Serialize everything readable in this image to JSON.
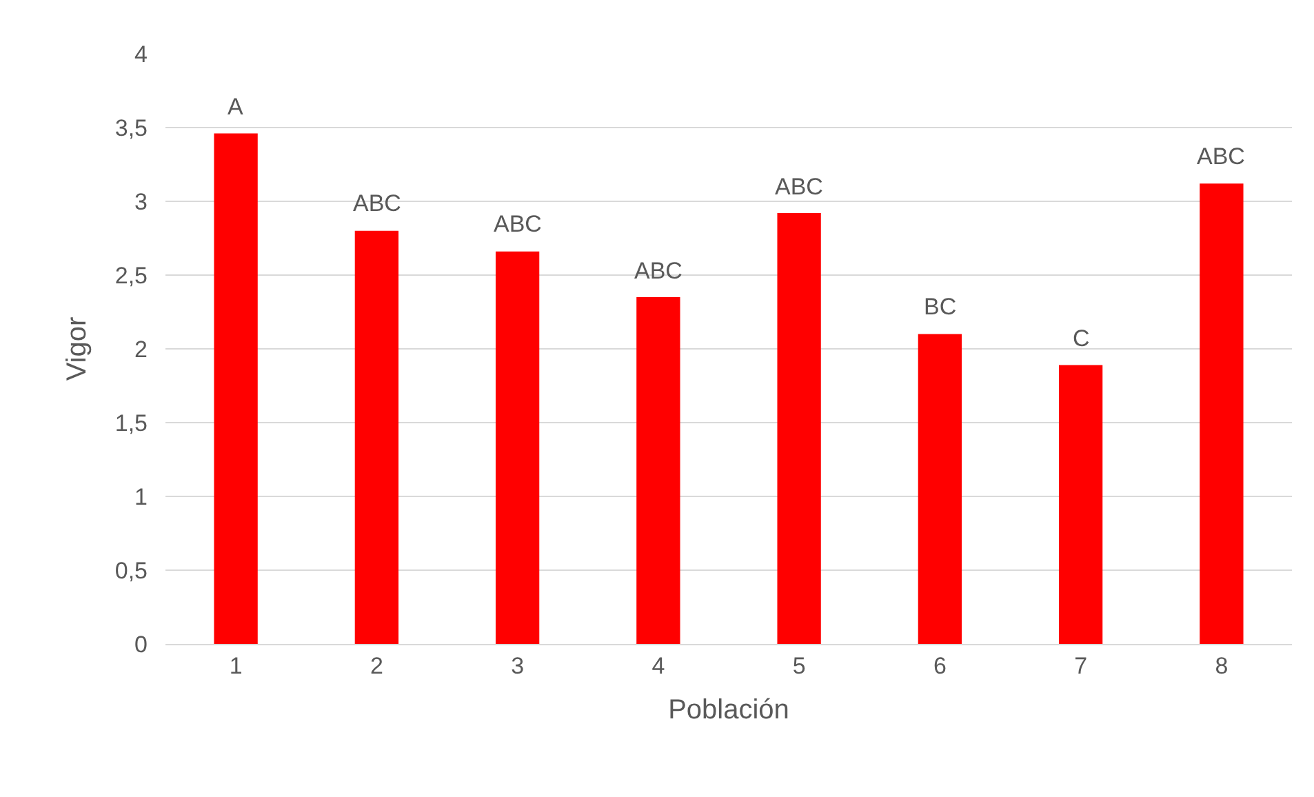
{
  "chart_data": {
    "type": "bar",
    "xlabel": "Población",
    "ylabel": "Vigor",
    "categories": [
      "1",
      "2",
      "3",
      "4",
      "5",
      "6",
      "7",
      "8"
    ],
    "values": [
      3.46,
      2.8,
      2.66,
      2.35,
      2.92,
      2.1,
      1.89,
      3.12
    ],
    "color": "#ff0000",
    "ylim": [
      0,
      4
    ],
    "yticks": [
      0,
      {
        "value": 0.5,
        "label": "0,5"
      },
      1,
      {
        "value": 1.5,
        "label": "1,5"
      },
      2,
      {
        "value": 2.5,
        "label": "2,5"
      },
      3,
      {
        "value": 3.5,
        "label": "3,5"
      },
      4
    ],
    "grid": "y",
    "annotations": [
      {
        "text": "A",
        "x": "1",
        "y": 3.46
      },
      {
        "text": "ABC",
        "x": "2",
        "y": 2.8
      },
      {
        "text": "ABC",
        "x": "3",
        "y": 2.66
      },
      {
        "text": "ABC",
        "x": "4",
        "y": 2.35
      },
      {
        "text": "ABC",
        "x": "5",
        "y": 2.92
      },
      {
        "text": "BC",
        "x": "6",
        "y": 2.1
      },
      {
        "text": "C",
        "x": "7",
        "y": 1.89
      },
      {
        "text": "ABC",
        "x": "8",
        "y": 3.12
      }
    ]
  }
}
